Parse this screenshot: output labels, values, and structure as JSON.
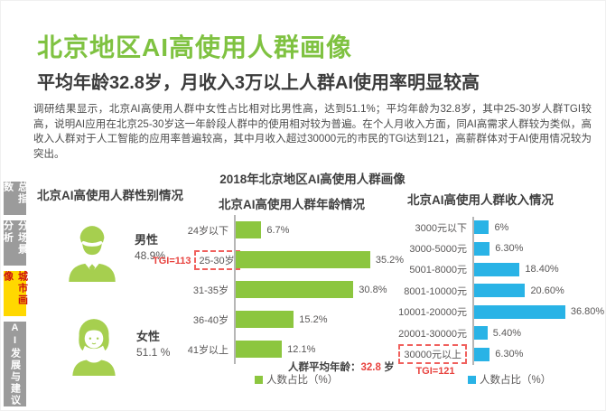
{
  "page": {
    "title": "北京地区AI高使用人群画像",
    "subtitle": "平均年龄32.8岁，月收入3万以上人群AI使用率明显较高",
    "body_text": "调研结果显示，北京AI高使用人群中女性占比相对比男性高，达到51.1%；平均年龄为32.8岁，其中25-30岁人群TGI较高，说明AI应用在北京25-30岁这一年龄段人群中的使用相对较为普遍。在个人月收入方面，同AI高需求人群较为类似，高收入人群对于人工智能的应用率普遍较高，其中月收入超过30000元的市民的TGI达到121，高薪群体对于AI使用情况较为突出。",
    "chart_main_title": "2018年北京地区AI高使用人群画像"
  },
  "sidebar": {
    "tabs": [
      {
        "label": "总指数",
        "active": false
      },
      {
        "label": "分场景分析",
        "active": false
      },
      {
        "label": "城市画像",
        "active": true
      },
      {
        "label": "AI发展与建议",
        "active": false
      }
    ],
    "colors": {
      "inactive_bg": "#9b9b9b",
      "active_bg": "#ffd800",
      "inactive_text": "#ffffff",
      "active_text": "#cc1111"
    }
  },
  "gender_section": {
    "title": "北京AI高使用人群性别情况",
    "male": {
      "label": "男性",
      "value": "48.9%",
      "icon": "male-person-icon",
      "color": "#a6cf4f"
    },
    "female": {
      "label": "女性",
      "value": "51.1 %",
      "icon": "female-person-icon",
      "color": "#a6cf4f"
    }
  },
  "chart_data": [
    {
      "type": "bar",
      "orientation": "horizontal",
      "title": "北京AI高使用人群年龄情况",
      "categories": [
        "24岁以下",
        "25-30岁",
        "31-35岁",
        "36-40岁",
        "41岁以上"
      ],
      "values": [
        6.7,
        35.2,
        30.8,
        15.2,
        12.1
      ],
      "value_labels": [
        "6.7%",
        "35.2%",
        "30.8%",
        "15.2%",
        "12.1%"
      ],
      "bar_color": "#8cc63f",
      "legend": "人数占比（%）",
      "highlight": {
        "category_index": 1,
        "tgi_label": "TGI=113",
        "position": "left"
      },
      "footnote": {
        "prefix": "人群平均年龄：",
        "value": "32.8",
        "suffix": " 岁"
      }
    },
    {
      "type": "bar",
      "orientation": "horizontal",
      "title": "北京AI高使用人群收入情况",
      "categories": [
        "3000元以下",
        "3000-5000元",
        "5001-8000元",
        "8001-10000元",
        "10001-20000元",
        "20001-30000元",
        "30000元以上"
      ],
      "values": [
        6,
        6.3,
        18.4,
        20.6,
        36.8,
        5.4,
        6.3
      ],
      "value_labels": [
        "6%",
        "6.30%",
        "18.40%",
        "20.60%",
        "36.80%",
        "5.40%",
        "6.30%"
      ],
      "bar_color": "#29b3e6",
      "legend": "人数占比（%）",
      "highlight": {
        "category_index": 6,
        "tgi_label": "TGI=121",
        "position": "below"
      }
    }
  ]
}
